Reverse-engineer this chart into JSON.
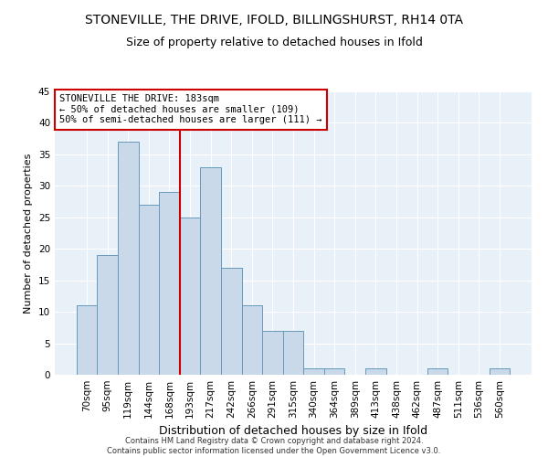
{
  "title": "STONEVILLE, THE DRIVE, IFOLD, BILLINGSHURST, RH14 0TA",
  "subtitle": "Size of property relative to detached houses in Ifold",
  "xlabel": "Distribution of detached houses by size in Ifold",
  "ylabel": "Number of detached properties",
  "footer_line1": "Contains HM Land Registry data © Crown copyright and database right 2024.",
  "footer_line2": "Contains public sector information licensed under the Open Government Licence v3.0.",
  "categories": [
    "70sqm",
    "95sqm",
    "119sqm",
    "144sqm",
    "168sqm",
    "193sqm",
    "217sqm",
    "242sqm",
    "266sqm",
    "291sqm",
    "315sqm",
    "340sqm",
    "364sqm",
    "389sqm",
    "413sqm",
    "438sqm",
    "462sqm",
    "487sqm",
    "511sqm",
    "536sqm",
    "560sqm"
  ],
  "values": [
    11,
    19,
    37,
    27,
    29,
    25,
    33,
    17,
    11,
    7,
    7,
    1,
    1,
    0,
    1,
    0,
    0,
    1,
    0,
    0,
    1
  ],
  "bar_color": "#c9d9ea",
  "bar_edge_color": "#6699bb",
  "vline_x": 4.5,
  "vline_color": "#cc0000",
  "annotation_text": "STONEVILLE THE DRIVE: 183sqm\n← 50% of detached houses are smaller (109)\n50% of semi-detached houses are larger (111) →",
  "annotation_box_color": "#ffffff",
  "annotation_box_edge_color": "#cc0000",
  "ylim": [
    0,
    45
  ],
  "yticks": [
    0,
    5,
    10,
    15,
    20,
    25,
    30,
    35,
    40,
    45
  ],
  "bg_color": "#e8f0f8",
  "title_fontsize": 10,
  "subtitle_fontsize": 9,
  "ylabel_fontsize": 8,
  "xlabel_fontsize": 9,
  "tick_fontsize": 7.5,
  "footer_fontsize": 6,
  "annotation_fontsize": 7.5
}
